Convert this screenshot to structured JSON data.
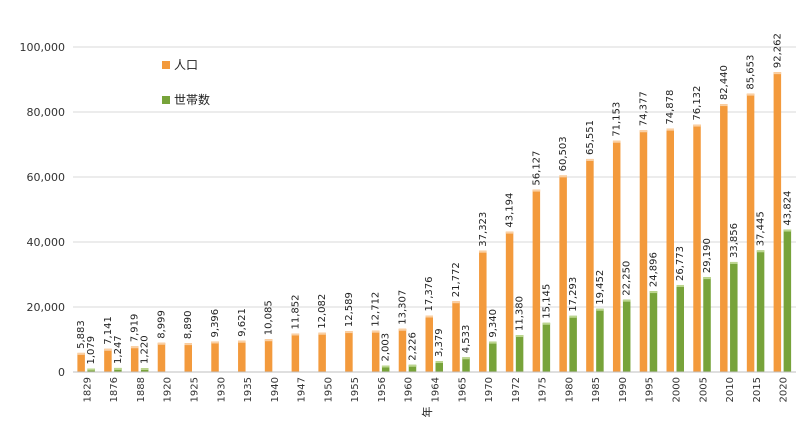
{
  "chart_data": {
    "type": "bar",
    "title": "",
    "xlabel": "年",
    "ylabel": "",
    "ylim": [
      0,
      100000
    ],
    "yticks": [
      "0",
      "20,000",
      "40,000",
      "60,000",
      "80,000",
      "100,000"
    ],
    "ytick_values": [
      0,
      20000,
      40000,
      60000,
      80000,
      100000
    ],
    "grid": true,
    "legend_position": "top-left",
    "categories": [
      "1829",
      "1876",
      "1888",
      "1920",
      "1925",
      "1930",
      "1935",
      "1940",
      "1947",
      "1950",
      "1955",
      "1956",
      "1960",
      "1964",
      "1965",
      "1970",
      "1972",
      "1975",
      "1980",
      "1985",
      "1990",
      "1995",
      "2000",
      "2005",
      "2010",
      "2015",
      "2020"
    ],
    "series": [
      {
        "name": "人口",
        "color": "#F39A3C",
        "values": [
          5883,
          7141,
          7919,
          8999,
          8890,
          9396,
          9621,
          10085,
          11852,
          12082,
          12589,
          12712,
          13307,
          17376,
          21772,
          37323,
          43194,
          56127,
          60503,
          65551,
          71153,
          74377,
          74878,
          76132,
          82440,
          85653,
          92262
        ],
        "labels": [
          "5,883",
          "7,141",
          "7,919",
          "8,999",
          "8,890",
          "9,396",
          "9,621",
          "10,085",
          "11,852",
          "12,082",
          "12,589",
          "12,712",
          "13,307",
          "17,376",
          "21,772",
          "37,323",
          "43,194",
          "56,127",
          "60,503",
          "65,551",
          "71,153",
          "74,377",
          "74,878",
          "76,132",
          "82,440",
          "85,653",
          "92,262"
        ]
      },
      {
        "name": "世帯数",
        "color": "#77A33A",
        "values": [
          1079,
          1247,
          1220,
          null,
          null,
          null,
          null,
          null,
          null,
          null,
          null,
          2003,
          2226,
          3379,
          4533,
          9340,
          11380,
          15145,
          17293,
          19452,
          22250,
          24896,
          26773,
          29190,
          33856,
          37445,
          43824
        ],
        "labels": [
          "1,079",
          "1,247",
          "1,220",
          null,
          null,
          null,
          null,
          null,
          null,
          null,
          null,
          "2,003",
          "2,226",
          "3,379",
          "4,533",
          "9,340",
          "11,380",
          "15,145",
          "17,293",
          "19,452",
          "22,250",
          "24,896",
          "26,773",
          "29,190",
          "33,856",
          "37,445",
          "43,824"
        ]
      }
    ]
  }
}
